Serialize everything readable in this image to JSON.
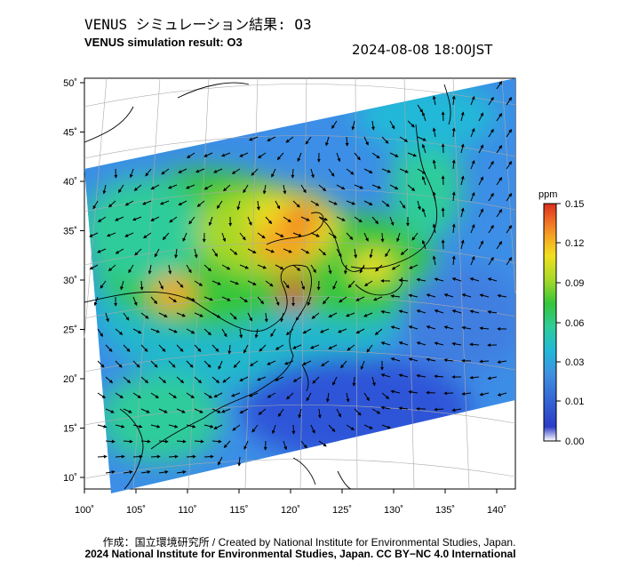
{
  "header": {
    "title_jp": "VENUS シミュレーション結果: O3",
    "title_en": "VENUS simulation result: O3",
    "timestamp": "2024-08-08 18:00JST"
  },
  "colorbar": {
    "unit": "ppm",
    "ticks": [
      "0.15",
      "0.12",
      "0.09",
      "0.06",
      "0.03",
      "0.01",
      "0.00"
    ],
    "colors": [
      "#d72f1e",
      "#f06a24",
      "#f5a623",
      "#f0e020",
      "#a8d828",
      "#35c63a",
      "#2ecc9a",
      "#22b8d8",
      "#3f8fe0",
      "#2a4cd0",
      "#ffffff"
    ]
  },
  "map": {
    "lon_ticks": [
      "100˚",
      "105˚",
      "110˚",
      "115˚",
      "120˚",
      "125˚",
      "130˚",
      "135˚",
      "140˚"
    ],
    "lat_ticks": [
      "50˚",
      "45˚",
      "40˚",
      "35˚",
      "30˚",
      "25˚",
      "20˚",
      "15˚",
      "10˚"
    ]
  },
  "footer": {
    "credit_line": "作成：国立環境研究所 / Created by National Institute for Environmental Studies, Japan.",
    "license_line": "2024 National Institute for Environmental Studies, Japan. CC BY−NC 4.0 International"
  }
}
